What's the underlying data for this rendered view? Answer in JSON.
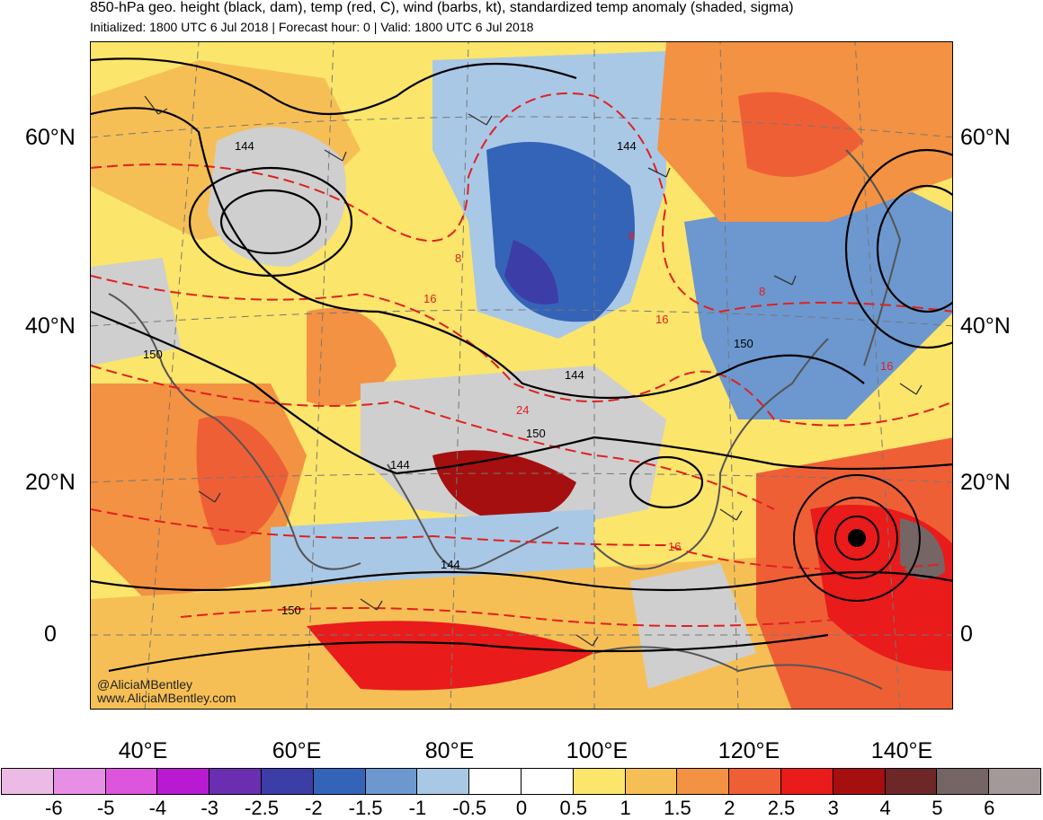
{
  "title": "850-hPa geo. height (black, dam), temp (red, C), wind (barbs, kt), standardized temp anomaly (shaded, sigma)",
  "subtitle": "Initialized: 1800 UTC 6 Jul 2018 | Forecast hour: 0 | Valid: 1800 UTC 6 Jul 2018",
  "lat_labels": [
    "60°N",
    "40°N",
    "20°N",
    "0"
  ],
  "lon_labels": [
    "40°E",
    "60°E",
    "80°E",
    "100°E",
    "120°E",
    "140°E"
  ],
  "height_labels": [
    "144",
    "144",
    "150",
    "144",
    "144",
    "150",
    "144",
    "150",
    "150"
  ],
  "temp_labels": [
    "8",
    "8",
    "16",
    "16",
    "8",
    "16",
    "24",
    "16"
  ],
  "credit": [
    "@AliciaMBentley",
    "www.AliciaMBentley.com"
  ],
  "colorbar": {
    "colors": [
      "#ebbbe5",
      "#e78ee5",
      "#dd55dd",
      "#b81ad2",
      "#6a2fb0",
      "#3d3da8",
      "#3464b7",
      "#6c98cf",
      "#a9c8e6",
      "#ffffff",
      "#ffffff",
      "#fbe56b",
      "#f6bf55",
      "#f39242",
      "#ef5f36",
      "#e91b1b",
      "#a50f0f",
      "#6e2727",
      "#766565",
      "#a39999"
    ],
    "labels": [
      "-6",
      "-5",
      "-4",
      "-3",
      "-2.5",
      "-2",
      "-1.5",
      "-1",
      "-0.5",
      "0",
      "0.5",
      "1",
      "1.5",
      "2",
      "2.5",
      "3",
      "4",
      "5",
      "6"
    ]
  }
}
